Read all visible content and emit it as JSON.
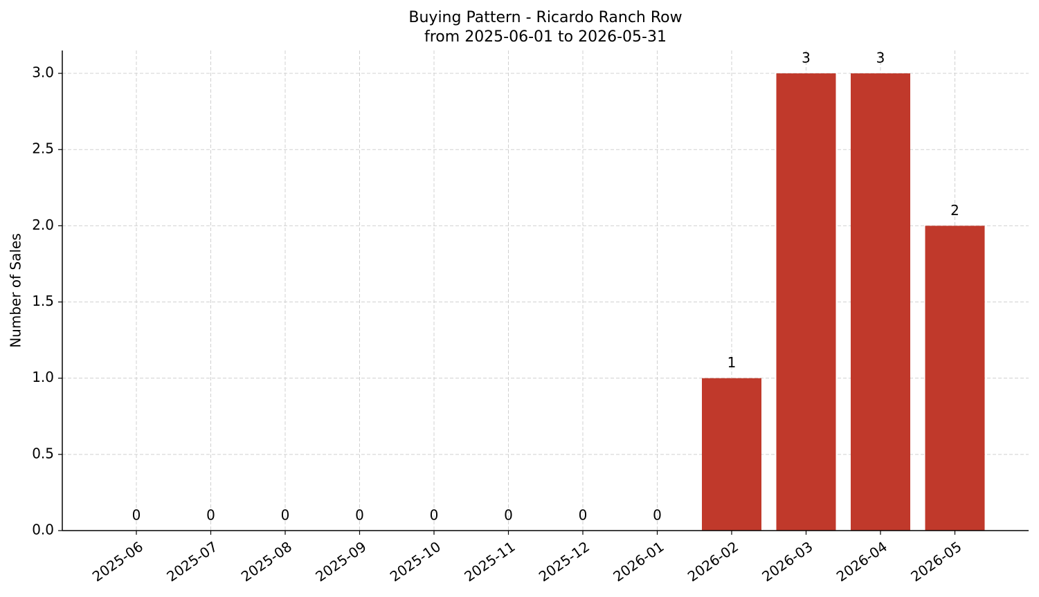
{
  "chart_data": {
    "type": "bar",
    "title": "Buying Pattern - Ricardo Ranch Row",
    "subtitle": "from 2025-06-01 to 2026-05-31",
    "y_label": "Number of Sales",
    "categories": [
      "2025-06",
      "2025-07",
      "2025-08",
      "2025-09",
      "2025-10",
      "2025-11",
      "2025-12",
      "2026-01",
      "2026-02",
      "2026-03",
      "2026-04",
      "2026-05"
    ],
    "values": [
      0,
      0,
      0,
      0,
      0,
      0,
      0,
      0,
      1,
      3,
      3,
      2
    ],
    "color": "#c0392b",
    "ylim": [
      0,
      3.15
    ],
    "yticks": [
      {
        "value": 0,
        "label": "0.0"
      },
      0.5,
      {
        "value": 1,
        "label": "1.0"
      },
      1.5,
      {
        "value": 2,
        "label": "2.0"
      },
      2.5,
      {
        "value": 3,
        "label": "3.0"
      }
    ],
    "grid": true
  }
}
